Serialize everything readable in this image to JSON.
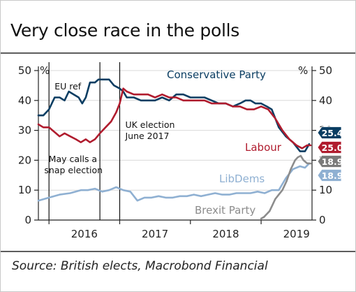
{
  "title": "Very close race in the polls",
  "source": "Source: British elects, Macrobond Financial",
  "colors": {
    "conservative": "#0a3d62",
    "labour": "#b01c2e",
    "libdems": "#8fb0d2",
    "brexit": "#8c8c8c",
    "grid": "#d9d9d9",
    "axis": "#222222"
  },
  "chart_data": {
    "type": "line",
    "title": "Very close race in the polls",
    "ylabel_left": "%",
    "ylabel_right": "%",
    "ylim": [
      0,
      50
    ],
    "yticks": [
      0,
      10,
      20,
      30,
      40,
      50
    ],
    "ytick_labels": [
      "0",
      "10",
      "20",
      "30",
      "40",
      "50"
    ],
    "xlim": [
      2015.85,
      2019.72
    ],
    "xticks": [
      2016,
      2017,
      2018,
      2019
    ],
    "xtick_labels": [
      "2016",
      "2017",
      "2018",
      "2019"
    ],
    "grid": true,
    "series": [
      {
        "name": "Conservative Party",
        "key": "conservative",
        "end_label": "25.4",
        "x": [
          2015.85,
          2015.92,
          2016.0,
          2016.08,
          2016.15,
          2016.22,
          2016.28,
          2016.35,
          2016.42,
          2016.47,
          2016.52,
          2016.58,
          2016.65,
          2016.7,
          2016.78,
          2016.85,
          2016.92,
          2017.0,
          2017.05,
          2017.1,
          2017.2,
          2017.3,
          2017.4,
          2017.5,
          2017.6,
          2017.7,
          2017.8,
          2017.9,
          2018.0,
          2018.1,
          2018.2,
          2018.3,
          2018.4,
          2018.5,
          2018.6,
          2018.7,
          2018.78,
          2018.85,
          2018.92,
          2019.0,
          2019.08,
          2019.15,
          2019.25,
          2019.35,
          2019.45,
          2019.55,
          2019.62,
          2019.68
        ],
        "y": [
          35,
          35,
          37,
          41,
          41,
          40,
          43,
          42,
          41,
          39,
          41,
          46,
          46,
          47,
          47,
          47,
          45,
          44,
          43,
          41,
          41,
          40,
          40,
          40,
          41,
          40,
          42,
          42,
          41,
          41,
          41,
          40,
          39,
          39,
          38,
          39,
          40,
          40,
          39,
          39,
          38,
          37,
          31,
          28,
          26,
          23,
          23,
          25.4
        ]
      },
      {
        "name": "Labour",
        "key": "labour",
        "end_label": "25.0",
        "x": [
          2015.85,
          2015.92,
          2016.0,
          2016.05,
          2016.1,
          2016.15,
          2016.22,
          2016.3,
          2016.38,
          2016.45,
          2016.52,
          2016.58,
          2016.65,
          2016.72,
          2016.8,
          2016.88,
          2016.95,
          2017.0,
          2017.05,
          2017.1,
          2017.2,
          2017.3,
          2017.4,
          2017.5,
          2017.6,
          2017.7,
          2017.8,
          2017.9,
          2018.0,
          2018.1,
          2018.2,
          2018.3,
          2018.4,
          2018.5,
          2018.6,
          2018.7,
          2018.8,
          2018.9,
          2019.0,
          2019.1,
          2019.2,
          2019.3,
          2019.4,
          2019.5,
          2019.58,
          2019.65,
          2019.7
        ],
        "y": [
          32,
          31,
          31,
          30,
          29,
          28,
          29,
          28,
          27,
          26,
          27,
          26,
          27,
          29,
          31,
          33,
          36,
          39,
          44,
          43,
          42,
          42,
          42,
          41,
          42,
          41,
          41,
          40,
          40,
          40,
          40,
          39,
          39,
          39,
          38,
          38,
          37,
          37,
          38,
          37,
          34,
          30,
          27,
          25,
          24,
          25,
          25.0
        ]
      },
      {
        "name": "LibDems",
        "key": "libdems",
        "end_label": "18.9",
        "x": [
          2015.85,
          2016.0,
          2016.15,
          2016.3,
          2016.45,
          2016.55,
          2016.65,
          2016.75,
          2016.85,
          2016.95,
          2017.05,
          2017.15,
          2017.25,
          2017.35,
          2017.45,
          2017.55,
          2017.65,
          2017.75,
          2017.85,
          2017.95,
          2018.05,
          2018.15,
          2018.25,
          2018.35,
          2018.45,
          2018.55,
          2018.65,
          2018.75,
          2018.85,
          2018.95,
          2019.05,
          2019.15,
          2019.25,
          2019.35,
          2019.45,
          2019.55,
          2019.62,
          2019.68
        ],
        "y": [
          6.5,
          7.5,
          8.5,
          9,
          10,
          10,
          10.5,
          9.5,
          10,
          11,
          10,
          9.5,
          6.5,
          7.5,
          7.5,
          8,
          7.5,
          7.5,
          8,
          8,
          8.5,
          8,
          8.5,
          9,
          8.5,
          8.5,
          9,
          9,
          9,
          9.5,
          9,
          10,
          10,
          14,
          17,
          18,
          17.5,
          18.9
        ]
      },
      {
        "name": "Brexit Party",
        "key": "brexit",
        "end_label": "18.9",
        "x": [
          2019.0,
          2019.04,
          2019.08,
          2019.12,
          2019.16,
          2019.2,
          2019.25,
          2019.3,
          2019.36,
          2019.42,
          2019.48,
          2019.52,
          2019.56,
          2019.6,
          2019.65,
          2019.7
        ],
        "y": [
          0.5,
          1,
          2,
          3,
          5,
          7,
          8.5,
          10,
          13,
          17,
          20,
          21,
          21.5,
          20,
          19,
          18.9
        ]
      }
    ],
    "series_labels": {
      "conservative": "Conservative Party",
      "labour": "Labour",
      "libdems": "LibDems",
      "brexit": "Brexit Party"
    },
    "events": [
      {
        "x": 2016.0,
        "label": "EU ref"
      },
      {
        "x": 2016.72,
        "label_lines": [
          "May calls a",
          "snap election"
        ]
      },
      {
        "x": 2017.0,
        "label_lines": [
          "UK election",
          "June 2017"
        ]
      }
    ]
  }
}
